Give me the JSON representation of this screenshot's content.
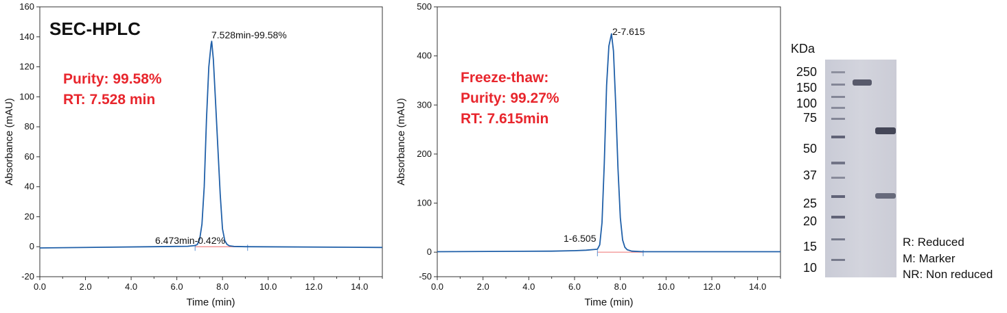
{
  "colors": {
    "trace": "#1f5fa8",
    "baseline": "#f08080",
    "highlight": "#e8262d",
    "axis": "#333333"
  },
  "chart_data": [
    {
      "type": "line",
      "title": "SEC-HPLC",
      "xlabel": "Time (min)",
      "ylabel": "Absorbance (mAU)",
      "xlim": [
        0,
        15
      ],
      "ylim": [
        -20,
        160
      ],
      "x_ticks": [
        "0.0",
        "2.0",
        "4.0",
        "6.0",
        "8.0",
        "10.0",
        "12.0",
        "14.0"
      ],
      "y_ticks": [
        "-20",
        "0",
        "20",
        "40",
        "60",
        "80",
        "100",
        "120",
        "140",
        "160"
      ],
      "series": [
        {
          "x": [
            0,
            5.0,
            6.473,
            6.8,
            6.9,
            7.0,
            7.1,
            7.2,
            7.3,
            7.4,
            7.5,
            7.528,
            7.6,
            7.7,
            7.8,
            7.9,
            8.0,
            8.1,
            8.2,
            8.3,
            8.5,
            9.0,
            15.0
          ],
          "y": [
            -0.8,
            0,
            0.3,
            0.8,
            1.5,
            5,
            15,
            40,
            85,
            120,
            135,
            137,
            125,
            95,
            65,
            35,
            12,
            4,
            1.5,
            0.6,
            0.2,
            0,
            -0.5
          ]
        }
      ],
      "peaks": [
        {
          "label": "7.528min-99.58%",
          "x": 7.528,
          "y": 137
        },
        {
          "label": "6.473min-0.42%",
          "x": 6.473,
          "y": 0.3
        }
      ],
      "integration_bounds": [
        6.8,
        9.1
      ],
      "annotations": [
        "Purity: 99.58%",
        "RT: 7.528 min"
      ]
    },
    {
      "type": "line",
      "title": "",
      "xlabel": "Time (min)",
      "ylabel": "Absorbance (mAU)",
      "xlim": [
        0,
        15
      ],
      "ylim": [
        -50,
        500
      ],
      "x_ticks": [
        "0.0",
        "2.0",
        "4.0",
        "6.0",
        "8.0",
        "10.0",
        "12.0",
        "14.0"
      ],
      "y_ticks": [
        "-50",
        "0",
        "100",
        "200",
        "300",
        "400",
        "500"
      ],
      "series": [
        {
          "x": [
            0,
            5.0,
            6.0,
            6.505,
            7.0,
            7.1,
            7.2,
            7.3,
            7.4,
            7.5,
            7.615,
            7.7,
            7.8,
            7.9,
            8.0,
            8.1,
            8.2,
            8.3,
            8.5,
            9.0,
            15.0
          ],
          "y": [
            1,
            2,
            3,
            4,
            6,
            15,
            60,
            180,
            340,
            420,
            445,
            410,
            300,
            170,
            70,
            25,
            10,
            5,
            2,
            1,
            1
          ]
        }
      ],
      "peaks": [
        {
          "label": "2-7.615",
          "x": 7.615,
          "y": 445
        },
        {
          "label": "1-6.505",
          "x": 6.505,
          "y": 4
        }
      ],
      "integration_bounds": [
        7.0,
        9.0
      ],
      "annotations": [
        "Freeze-thaw:",
        "Purity: 99.27%",
        "RT: 7.615min"
      ]
    }
  ],
  "gel": {
    "unit_label": "KDa",
    "markers": [
      "250",
      "150",
      "100",
      "75",
      "50",
      "37",
      "25",
      "20",
      "15",
      "10"
    ],
    "legend": [
      "R: Reduced",
      "M: Marker",
      "NR: Non reduced"
    ]
  }
}
